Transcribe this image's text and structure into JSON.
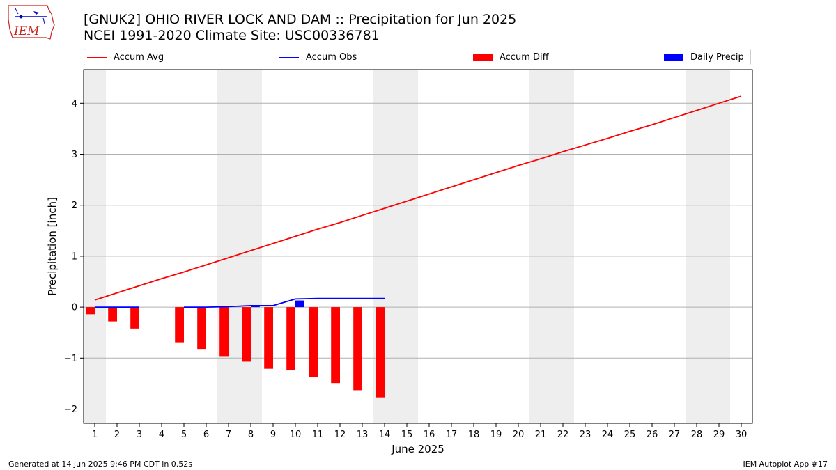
{
  "header": {
    "title_line1": "[GNUK2] OHIO RIVER LOCK AND DAM :: Precipitation for Jun 2025",
    "title_line2": "NCEI 1991-2020 Climate Site: USC00336781"
  },
  "logo": {
    "text": "IEM",
    "icon": "iem-iowa-logo-icon"
  },
  "footer": {
    "left": "Generated at 14 Jun 2025 9:46 PM CDT in 0.52s",
    "right": "IEM Autoplot App #17"
  },
  "legend": {
    "placement": "top-full-width",
    "items": [
      {
        "label": "Accum Avg",
        "color": "#ff0000",
        "kind": "line"
      },
      {
        "label": "Accum Obs",
        "color": "#0000ff",
        "kind": "line"
      },
      {
        "label": "Accum Diff",
        "color": "#ff0000",
        "kind": "bar"
      },
      {
        "label": "Daily Precip",
        "color": "#0000ff",
        "kind": "bar"
      }
    ]
  },
  "chart_data": {
    "type": "line",
    "xlabel": "June 2025",
    "ylabel": "Precipitation [inch]",
    "xlim": [
      0.5,
      30.5
    ],
    "ylim": [
      -2.28,
      4.66
    ],
    "x_ticks": [
      1,
      2,
      3,
      4,
      5,
      6,
      7,
      8,
      9,
      10,
      11,
      12,
      13,
      14,
      15,
      16,
      17,
      18,
      19,
      20,
      21,
      22,
      23,
      24,
      25,
      26,
      27,
      28,
      29,
      30
    ],
    "x_tick_labels": [
      "1",
      "2",
      "3",
      "4",
      "5",
      "6",
      "7",
      "8",
      "9",
      "10",
      "11",
      "12",
      "13",
      "14",
      "15",
      "16",
      "17",
      "18",
      "19",
      "20",
      "21",
      "22",
      "23",
      "24",
      "25",
      "26",
      "27",
      "28",
      "29",
      "30"
    ],
    "y_ticks": [
      -2,
      -1,
      0,
      1,
      2,
      3,
      4
    ],
    "y_tick_labels": [
      "−2",
      "−1",
      "0",
      "1",
      "2",
      "3",
      "4"
    ],
    "grid": "y",
    "weekend_bands": [
      [
        0.5,
        1.5
      ],
      [
        6.5,
        8.5
      ],
      [
        13.5,
        15.5
      ],
      [
        20.5,
        22.5
      ],
      [
        27.5,
        29.5
      ]
    ],
    "band_color": "#eeeeee",
    "series": [
      {
        "name": "Accum Avg",
        "kind": "line",
        "color": "#ff0000",
        "x": [
          1,
          2,
          3,
          4,
          5,
          6,
          7,
          8,
          9,
          10,
          11,
          12,
          13,
          14,
          15,
          16,
          17,
          18,
          19,
          20,
          21,
          22,
          23,
          24,
          25,
          26,
          27,
          28,
          29,
          30
        ],
        "values": [
          0.14,
          0.28,
          0.42,
          0.56,
          0.69,
          0.83,
          0.97,
          1.11,
          1.25,
          1.39,
          1.53,
          1.66,
          1.8,
          1.94,
          2.08,
          2.22,
          2.36,
          2.5,
          2.64,
          2.78,
          2.91,
          3.05,
          3.18,
          3.31,
          3.45,
          3.58,
          3.72,
          3.86,
          4.0,
          4.14
        ]
      },
      {
        "name": "Accum Obs",
        "kind": "line",
        "color": "#0000ff",
        "segments": [
          {
            "x": [
              1,
              2,
              3
            ],
            "values": [
              0.0,
              0.0,
              0.0
            ]
          },
          {
            "x": [
              5,
              6,
              7,
              8,
              9,
              10,
              11,
              12,
              13,
              14
            ],
            "values": [
              0.0,
              0.0,
              0.01,
              0.03,
              0.03,
              0.16,
              0.17,
              0.17,
              0.17,
              0.17
            ]
          }
        ]
      },
      {
        "name": "Accum Diff",
        "kind": "bar",
        "color": "#ff0000",
        "bar_offset": -0.2,
        "x": [
          1,
          2,
          3,
          5,
          6,
          7,
          8,
          9,
          10,
          11,
          12,
          13,
          14
        ],
        "values": [
          -0.14,
          -0.28,
          -0.42,
          -0.69,
          -0.82,
          -0.96,
          -1.07,
          -1.21,
          -1.23,
          -1.37,
          -1.49,
          -1.63,
          -1.77
        ]
      },
      {
        "name": "Daily Precip",
        "kind": "bar",
        "color": "#0000ff",
        "bar_offset": 0.2,
        "x": [
          8,
          10
        ],
        "values": [
          0.02,
          0.13
        ]
      }
    ]
  }
}
